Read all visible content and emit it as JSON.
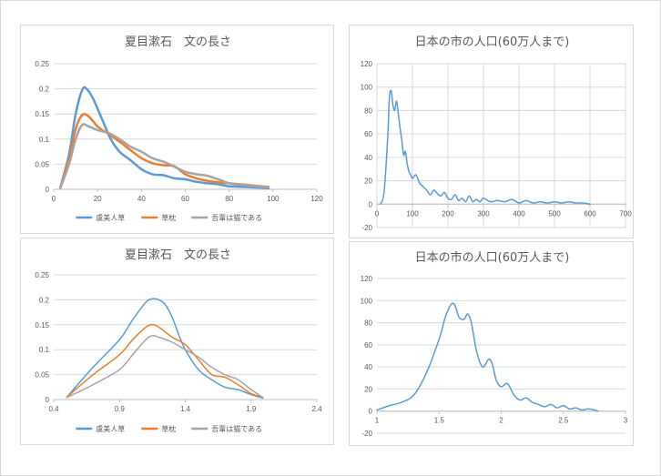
{
  "colors": {
    "blue": "#5b9bd5",
    "orange": "#ed7d31",
    "gray": "#a5a5a5"
  },
  "chart_data": [
    {
      "type": "line",
      "title": "夏目漱石　文の長さ",
      "xlim": [
        0,
        120
      ],
      "ylim": [
        0,
        0.25
      ],
      "xticks": [
        "0",
        "20",
        "40",
        "60",
        "80",
        "100",
        "120"
      ],
      "yticks": [
        "0",
        "0.05",
        "0.1",
        "0.15",
        "0.2",
        "0.25"
      ],
      "legend": "bottom",
      "series": [
        {
          "name": "虞美人草",
          "color": "#5b9bd5",
          "width": 2.5,
          "x": [
            3,
            7,
            10,
            13,
            15,
            18,
            22,
            26,
            30,
            35,
            40,
            45,
            50,
            55,
            60,
            65,
            70,
            75,
            80,
            85,
            90,
            95,
            98
          ],
          "y": [
            0.003,
            0.07,
            0.15,
            0.198,
            0.2,
            0.18,
            0.14,
            0.1,
            0.075,
            0.058,
            0.04,
            0.03,
            0.028,
            0.022,
            0.02,
            0.015,
            0.012,
            0.01,
            0.006,
            0.005,
            0.004,
            0.003,
            0.002
          ]
        },
        {
          "name": "草枕",
          "color": "#ed7d31",
          "width": 2.5,
          "x": [
            3,
            7,
            10,
            13,
            16,
            20,
            25,
            30,
            35,
            40,
            45,
            50,
            55,
            60,
            65,
            70,
            75,
            80,
            85,
            90,
            95,
            98
          ],
          "y": [
            0.003,
            0.06,
            0.12,
            0.148,
            0.145,
            0.125,
            0.11,
            0.095,
            0.078,
            0.062,
            0.052,
            0.048,
            0.046,
            0.03,
            0.022,
            0.017,
            0.014,
            0.012,
            0.01,
            0.008,
            0.006,
            0.005
          ]
        },
        {
          "name": "吾輩は猫である",
          "color": "#a5a5a5",
          "width": 2.5,
          "x": [
            3,
            7,
            10,
            13,
            16,
            20,
            25,
            30,
            35,
            40,
            45,
            50,
            55,
            60,
            65,
            70,
            75,
            80,
            85,
            90,
            95,
            98
          ],
          "y": [
            0.002,
            0.05,
            0.1,
            0.128,
            0.125,
            0.118,
            0.112,
            0.1,
            0.085,
            0.075,
            0.062,
            0.055,
            0.045,
            0.035,
            0.03,
            0.027,
            0.02,
            0.012,
            0.009,
            0.007,
            0.005,
            0.004
          ]
        }
      ]
    },
    {
      "type": "line",
      "title": "日本の市の人口(60万人まで)",
      "xlim": [
        0,
        700
      ],
      "ylim": [
        -20,
        120
      ],
      "xticks": [
        "0",
        "100",
        "200",
        "300",
        "400",
        "500",
        "600",
        "700"
      ],
      "yticks": [
        "-20",
        "0",
        "20",
        "40",
        "60",
        "80",
        "100",
        "120"
      ],
      "series": [
        {
          "color": "#5b9bd5",
          "width": 1.5,
          "x": [
            10,
            20,
            30,
            35,
            40,
            45,
            50,
            55,
            60,
            65,
            70,
            75,
            80,
            85,
            90,
            95,
            100,
            110,
            120,
            130,
            140,
            150,
            160,
            170,
            180,
            190,
            200,
            210,
            220,
            230,
            240,
            250,
            260,
            270,
            280,
            290,
            300,
            320,
            340,
            360,
            380,
            400,
            420,
            440,
            460,
            480,
            500,
            520,
            540,
            560,
            580,
            600
          ],
          "y": [
            0,
            10,
            55,
            90,
            97,
            85,
            80,
            88,
            78,
            65,
            55,
            42,
            45,
            35,
            28,
            25,
            22,
            25,
            18,
            15,
            12,
            8,
            12,
            9,
            7,
            10,
            5,
            4,
            8,
            3,
            5,
            2,
            7,
            2,
            4,
            2,
            5,
            2,
            3,
            2,
            4,
            1,
            3,
            1,
            2,
            1,
            2,
            1,
            2,
            1,
            1,
            0
          ]
        }
      ]
    },
    {
      "type": "line",
      "title": "夏目漱石　文の長さ",
      "xlim": [
        0.4,
        2.4
      ],
      "ylim": [
        0,
        0.25
      ],
      "xticks": [
        "0.4",
        "0.9",
        "1.4",
        "1.9",
        "2.4"
      ],
      "yticks": [
        "0",
        "0.05",
        "0.1",
        "0.15",
        "0.2",
        "0.25"
      ],
      "legend": "bottom",
      "series": [
        {
          "name": "虞美人草",
          "color": "#5b9bd5",
          "width": 1.5,
          "x": [
            0.5,
            0.7,
            0.9,
            1.0,
            1.1,
            1.15,
            1.2,
            1.25,
            1.3,
            1.35,
            1.4,
            1.5,
            1.6,
            1.7,
            1.8,
            1.9,
            1.99
          ],
          "y": [
            0.005,
            0.065,
            0.12,
            0.16,
            0.195,
            0.202,
            0.2,
            0.19,
            0.165,
            0.13,
            0.1,
            0.06,
            0.04,
            0.025,
            0.02,
            0.01,
            0.003
          ]
        },
        {
          "name": "草枕",
          "color": "#ed7d31",
          "width": 1.5,
          "x": [
            0.5,
            0.7,
            0.9,
            1.0,
            1.1,
            1.15,
            1.2,
            1.3,
            1.4,
            1.5,
            1.6,
            1.7,
            1.8,
            1.9,
            1.99
          ],
          "y": [
            0.005,
            0.05,
            0.09,
            0.12,
            0.145,
            0.15,
            0.145,
            0.125,
            0.11,
            0.08,
            0.05,
            0.045,
            0.03,
            0.012,
            0.005
          ]
        },
        {
          "name": "吾輩は猫である",
          "color": "#a5a5a5",
          "width": 1.5,
          "x": [
            0.5,
            0.7,
            0.9,
            1.0,
            1.1,
            1.15,
            1.2,
            1.3,
            1.4,
            1.5,
            1.6,
            1.7,
            1.8,
            1.9,
            1.99
          ],
          "y": [
            0.004,
            0.03,
            0.06,
            0.09,
            0.12,
            0.128,
            0.125,
            0.115,
            0.1,
            0.085,
            0.065,
            0.05,
            0.04,
            0.02,
            0.004
          ]
        }
      ]
    },
    {
      "type": "line",
      "title": "日本の市の人口(60万人まで)",
      "xlim": [
        1,
        3
      ],
      "ylim": [
        -20,
        120
      ],
      "xticks": [
        "1",
        "1.5",
        "2",
        "2.5",
        "3"
      ],
      "yticks": [
        "-20",
        "0",
        "20",
        "40",
        "60",
        "80",
        "100",
        "120"
      ],
      "series": [
        {
          "color": "#5b9bd5",
          "width": 1.5,
          "x": [
            1.0,
            1.1,
            1.2,
            1.3,
            1.4,
            1.5,
            1.55,
            1.6,
            1.63,
            1.66,
            1.7,
            1.73,
            1.76,
            1.8,
            1.85,
            1.9,
            1.93,
            1.96,
            2.0,
            2.05,
            2.1,
            2.15,
            2.2,
            2.25,
            2.3,
            2.35,
            2.4,
            2.45,
            2.5,
            2.55,
            2.6,
            2.65,
            2.7,
            2.75,
            2.78
          ],
          "y": [
            1,
            5,
            8,
            15,
            35,
            65,
            85,
            97,
            95,
            85,
            83,
            88,
            80,
            55,
            40,
            47,
            42,
            28,
            22,
            25,
            15,
            10,
            12,
            8,
            6,
            4,
            6,
            3,
            5,
            2,
            3,
            1,
            2,
            1,
            0
          ]
        }
      ]
    }
  ]
}
